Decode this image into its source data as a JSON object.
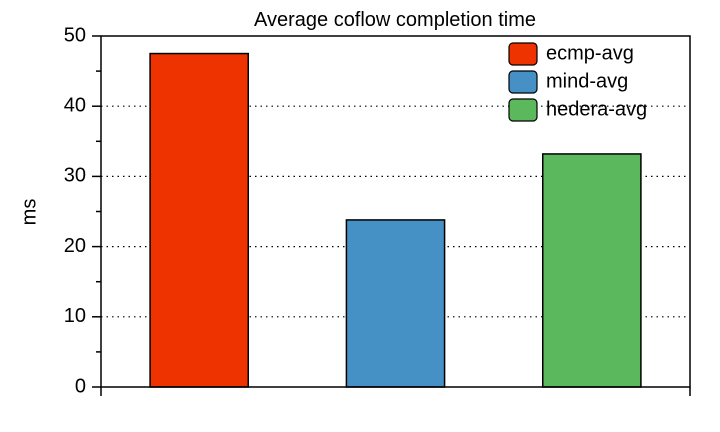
{
  "chart_data": {
    "type": "bar",
    "title": "Average coflow completion time",
    "xlabel": "",
    "ylabel": "ms",
    "ylim": [
      0,
      50
    ],
    "yticks": [
      0,
      10,
      20,
      30,
      40,
      50
    ],
    "grid": "horizontal dotted",
    "legend_position": "top-right",
    "series": [
      {
        "name": "ecmp-avg",
        "value": 47.5,
        "color": "#ee3300"
      },
      {
        "name": "mind-avg",
        "value": 23.8,
        "color": "#4591c6"
      },
      {
        "name": "hedera-avg",
        "value": 33.2,
        "color": "#5cb85c"
      }
    ]
  }
}
